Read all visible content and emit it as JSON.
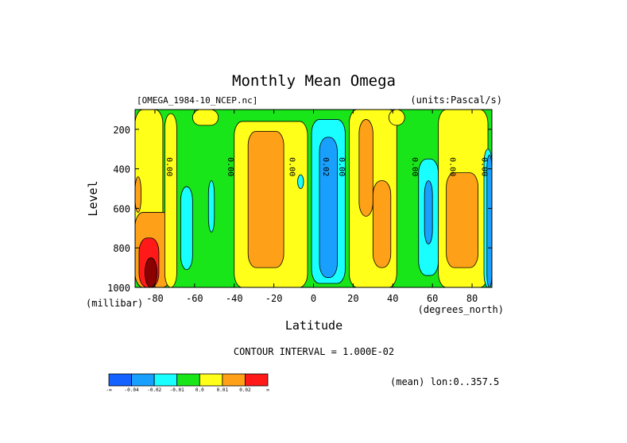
{
  "chart_data": {
    "type": "heatmap",
    "title": "Monthly Mean Omega",
    "subtitle_left": "[OMEGA_1984-10_NCEP.nc]",
    "subtitle_right": "(units:Pascal/s)",
    "xlabel": "Latitude",
    "xunit": "(degrees_north)",
    "ylabel": "Level",
    "yunit": "(millibar)",
    "xlim": [
      -90,
      90
    ],
    "ylim": [
      1000,
      100
    ],
    "xticks": [
      -80,
      -60,
      -40,
      -20,
      0,
      20,
      40,
      60,
      80
    ],
    "yticks": [
      200,
      400,
      600,
      800,
      1000
    ],
    "contour_interval_text": "CONTOUR INTERVAL = 1.000E-02",
    "footer_text": "(mean) lon:0..357.5",
    "contour_labels": [
      {
        "lat": -74,
        "lev": 390,
        "text": "0.00"
      },
      {
        "lat": -43,
        "lev": 390,
        "text": "0.00"
      },
      {
        "lat": -12,
        "lev": 390,
        "text": "0.00"
      },
      {
        "lat": 5,
        "lev": 390,
        "text": "0.02"
      },
      {
        "lat": 13,
        "lev": 390,
        "text": "0.00"
      },
      {
        "lat": 50,
        "lev": 390,
        "text": "0.00"
      },
      {
        "lat": 69,
        "lev": 390,
        "text": "0.00"
      },
      {
        "lat": 85,
        "lev": 390,
        "text": "0.00"
      }
    ],
    "colorbar": {
      "colors": [
        "#1462ff",
        "#19a0ff",
        "#19ffff",
        "#19e619",
        "#ffff19",
        "#ffa019",
        "#ff1919"
      ],
      "labels": [
        "-∞",
        "-0.04",
        "-0.02",
        "-0.01",
        "0.0",
        "0.01",
        "0.02",
        "∞"
      ]
    },
    "regions": [
      {
        "fill": "#ffff19",
        "lat_range": [
          -90,
          -76
        ],
        "lev_range": [
          100,
          1000
        ]
      },
      {
        "fill": "#ffa019",
        "lat_range": [
          -90,
          -87
        ],
        "lev_range": [
          440,
          620
        ]
      },
      {
        "fill": "#ffa019",
        "lat_range": [
          -90,
          -72
        ],
        "lev_range": [
          620,
          1000
        ]
      },
      {
        "fill": "#ff1919",
        "lat_range": [
          -88,
          -78
        ],
        "lev_range": [
          750,
          1000
        ]
      },
      {
        "fill": "#8b0000",
        "lat_range": [
          -85,
          -79
        ],
        "lev_range": [
          850,
          1000
        ]
      },
      {
        "fill": "#ffa019",
        "lat_range": [
          -74,
          -71
        ],
        "lev_range": [
          690,
          820
        ]
      },
      {
        "fill": "#ffff19",
        "lat_range": [
          -75,
          -69
        ],
        "lev_range": [
          120,
          1000
        ]
      },
      {
        "fill": "#19ffff",
        "lat_range": [
          -67,
          -61
        ],
        "lev_range": [
          490,
          910
        ]
      },
      {
        "fill": "#19ffff",
        "lat_range": [
          -53,
          -50
        ],
        "lev_range": [
          460,
          720
        ]
      },
      {
        "fill": "#ffff19",
        "lat_range": [
          -61,
          -48
        ],
        "lev_range": [
          100,
          180
        ]
      },
      {
        "fill": "#ffff19",
        "lat_range": [
          -40,
          -3
        ],
        "lev_range": [
          160,
          1000
        ]
      },
      {
        "fill": "#ffa019",
        "lat_range": [
          -33,
          -15
        ],
        "lev_range": [
          210,
          900
        ]
      },
      {
        "fill": "#19ffff",
        "lat_range": [
          -8,
          -5
        ],
        "lev_range": [
          430,
          500
        ]
      },
      {
        "fill": "#19ffff",
        "lat_range": [
          -1,
          16
        ],
        "lev_range": [
          150,
          980
        ]
      },
      {
        "fill": "#19a0ff",
        "lat_range": [
          3,
          12
        ],
        "lev_range": [
          240,
          950
        ]
      },
      {
        "fill": "#ffff19",
        "lat_range": [
          18,
          42
        ],
        "lev_range": [
          100,
          1000
        ]
      },
      {
        "fill": "#ffa019",
        "lat_range": [
          23,
          30
        ],
        "lev_range": [
          150,
          640
        ]
      },
      {
        "fill": "#ffa019",
        "lat_range": [
          30,
          39
        ],
        "lev_range": [
          460,
          900
        ]
      },
      {
        "fill": "#ffff19",
        "lat_range": [
          38,
          46
        ],
        "lev_range": [
          100,
          180
        ]
      },
      {
        "fill": "#19ffff",
        "lat_range": [
          53,
          63
        ],
        "lev_range": [
          350,
          940
        ]
      },
      {
        "fill": "#19a0ff",
        "lat_range": [
          56,
          60
        ],
        "lev_range": [
          460,
          780
        ]
      },
      {
        "fill": "#ffff19",
        "lat_range": [
          63,
          88
        ],
        "lev_range": [
          100,
          1000
        ]
      },
      {
        "fill": "#ffa019",
        "lat_range": [
          67,
          83
        ],
        "lev_range": [
          420,
          900
        ]
      },
      {
        "fill": "#19ffff",
        "lat_range": [
          86,
          90
        ],
        "lev_range": [
          300,
          1000
        ]
      },
      {
        "fill": "#19a0ff",
        "lat_range": [
          87.5,
          90
        ],
        "lev_range": [
          330,
          1000
        ]
      }
    ]
  }
}
